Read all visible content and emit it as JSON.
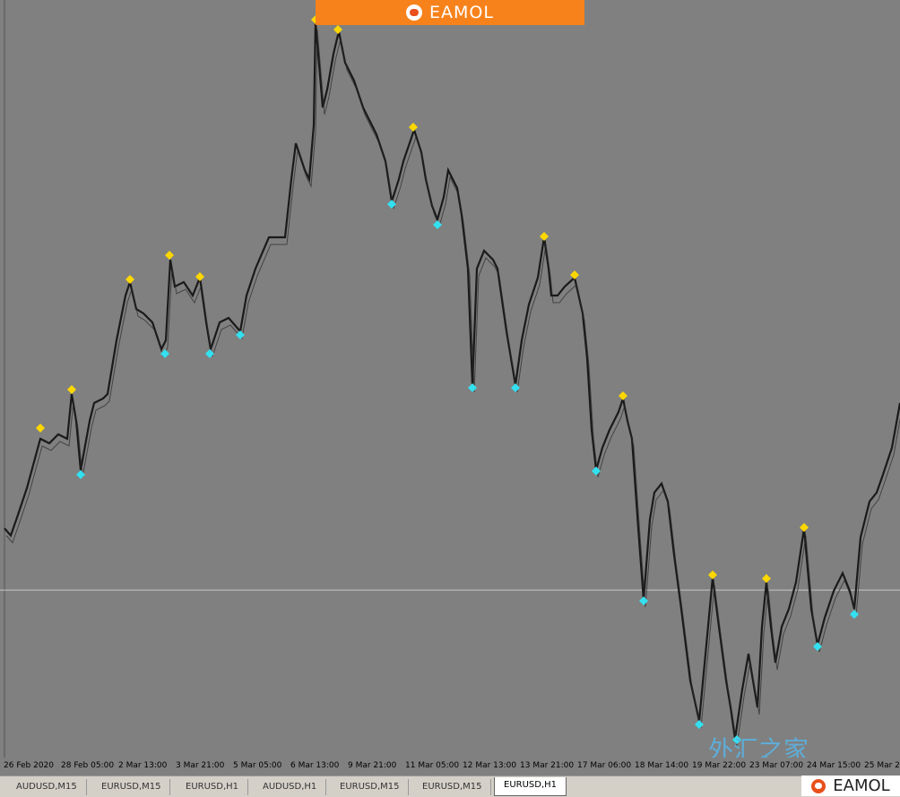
{
  "header": {
    "logo": "EAMOL"
  },
  "time_axis": {
    "labels": [
      "26 Feb 2020",
      "28 Feb 05:00",
      "2 Mar 13:00",
      "3 Mar 21:00",
      "5 Mar 05:00",
      "6 Mar 13:00",
      "9 Mar 21:00",
      "11 Mar 05:00",
      "12 Mar 13:00",
      "13 Mar 21:00",
      "17 Mar 06:00",
      "18 Mar 14:00",
      "19 Mar 22:00",
      "23 Mar 07:00",
      "24 Mar 15:00",
      "25 Mar 2"
    ]
  },
  "tabs": [
    "AUDUSD,M15",
    "EURUSD,M15",
    "EURUSD,H1",
    "AUDUSD,H1",
    "EURUSD,M15",
    "EURUSD,M15",
    "EURUSD,H1"
  ],
  "watermark": "外汇之家",
  "footer": {
    "logo": "EAMOL"
  }
}
